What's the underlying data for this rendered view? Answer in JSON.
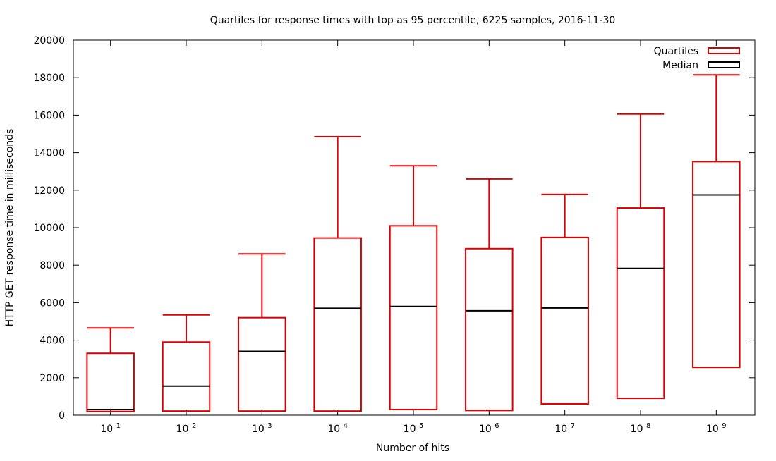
{
  "chart_data": {
    "type": "box",
    "title": "Quartiles for response times with top as 95 percentile, 6225 samples, 2016-11-30",
    "xlabel": "Number of hits",
    "ylabel": "HTTP GET response time in milliseconds",
    "ylim": [
      0,
      20000
    ],
    "yticks": [
      0,
      2000,
      4000,
      6000,
      8000,
      10000,
      12000,
      14000,
      16000,
      18000,
      20000
    ],
    "categories": [
      {
        "base": "10",
        "exp": "1"
      },
      {
        "base": "10",
        "exp": "2"
      },
      {
        "base": "10",
        "exp": "3"
      },
      {
        "base": "10",
        "exp": "4"
      },
      {
        "base": "10",
        "exp": "5"
      },
      {
        "base": "10",
        "exp": "6"
      },
      {
        "base": "10",
        "exp": "7"
      },
      {
        "base": "10",
        "exp": "8"
      },
      {
        "base": "10",
        "exp": "9"
      }
    ],
    "boxes": [
      {
        "min": 200,
        "q1": 200,
        "median": 300,
        "q3": 3300,
        "max": 4650
      },
      {
        "min": 220,
        "q1": 220,
        "median": 1550,
        "q3": 3900,
        "max": 5350
      },
      {
        "min": 220,
        "q1": 220,
        "median": 3400,
        "q3": 5200,
        "max": 8600
      },
      {
        "min": 220,
        "q1": 220,
        "median": 5700,
        "q3": 9450,
        "max": 14850
      },
      {
        "min": 300,
        "q1": 300,
        "median": 5800,
        "q3": 10100,
        "max": 13300
      },
      {
        "min": 250,
        "q1": 250,
        "median": 5570,
        "q3": 8880,
        "max": 12600
      },
      {
        "min": 600,
        "q1": 600,
        "median": 5720,
        "q3": 9480,
        "max": 11770
      },
      {
        "min": 900,
        "q1": 900,
        "median": 7830,
        "q3": 11050,
        "max": 16060
      },
      {
        "min": 2550,
        "q1": 2550,
        "median": 11750,
        "q3": 13520,
        "max": 18150
      }
    ],
    "legend": {
      "placement": "top-right",
      "items": [
        {
          "label": "Quartiles",
          "color": "#dd0000"
        },
        {
          "label": "Median",
          "color": "#000000"
        }
      ]
    },
    "colors": {
      "box": "#dd0000",
      "median": "#000000",
      "frame": "#000000"
    },
    "grid": false
  }
}
